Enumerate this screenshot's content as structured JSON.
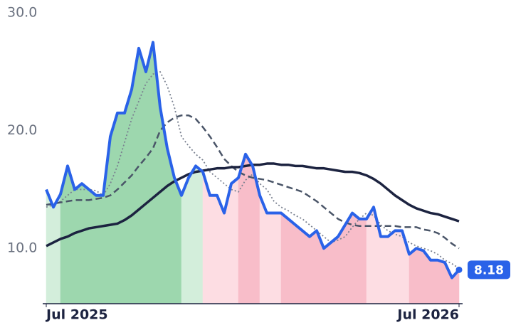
{
  "chart_data": {
    "type": "line",
    "categories": [
      "Jul 2025",
      null,
      null,
      null,
      null,
      null,
      null,
      null,
      null,
      null,
      null,
      null,
      null,
      null,
      null,
      null,
      null,
      null,
      null,
      null,
      null,
      null,
      null,
      null,
      null,
      null,
      null,
      null,
      null,
      null,
      null,
      null,
      null,
      null,
      null,
      null,
      null,
      null,
      null,
      null,
      null,
      null,
      null,
      null,
      null,
      null,
      null,
      null,
      null,
      null,
      null,
      null,
      null,
      null,
      null,
      null,
      null,
      null,
      "Jul 2026"
    ],
    "series": [
      {
        "color": "#2a62e8",
        "style": "solid",
        "width": 4,
        "end_label": true,
        "values": [
          15.0,
          13.5,
          14.6,
          17.0,
          15.0,
          15.5,
          15.0,
          14.5,
          14.5,
          19.5,
          21.5,
          21.5,
          23.5,
          27.0,
          25.0,
          27.5,
          22.0,
          18.5,
          16.0,
          14.5,
          16.0,
          17.0,
          16.5,
          14.5,
          14.5,
          13.0,
          15.5,
          16.0,
          18.0,
          17.0,
          14.5,
          13.0,
          13.0,
          13.0,
          12.5,
          12.0,
          11.5,
          11.0,
          11.5,
          10.0,
          10.5,
          11.0,
          12.0,
          13.0,
          12.5,
          12.5,
          13.5,
          11.0,
          11.0,
          11.5,
          11.5,
          9.5,
          10.0,
          9.8,
          9.0,
          9.0,
          8.8,
          7.5,
          8.18
        ],
        "fill_levels": [
          0,
          0,
          1,
          1,
          1,
          1,
          1,
          1,
          1,
          1,
          1,
          1,
          1,
          1,
          1,
          1,
          1,
          1,
          1,
          0,
          0,
          0,
          2,
          2,
          2,
          2,
          2,
          3,
          3,
          3,
          2,
          2,
          2,
          3,
          3,
          3,
          3,
          3,
          3,
          3,
          3,
          3,
          3,
          3,
          3,
          2,
          2,
          2,
          2,
          2,
          2,
          3,
          3,
          3,
          3,
          3,
          3,
          3,
          3
        ]
      },
      {
        "color": "#1c2340",
        "style": "solid",
        "width": 3.5,
        "values": [
          10.2,
          10.5,
          10.8,
          11.0,
          11.3,
          11.5,
          11.7,
          11.8,
          11.9,
          12.0,
          12.1,
          12.4,
          12.8,
          13.3,
          13.8,
          14.3,
          14.8,
          15.3,
          15.7,
          16.0,
          16.3,
          16.5,
          16.6,
          16.7,
          16.8,
          16.8,
          16.9,
          16.9,
          17.0,
          17.1,
          17.1,
          17.2,
          17.2,
          17.1,
          17.1,
          17.0,
          17.0,
          16.9,
          16.8,
          16.8,
          16.7,
          16.6,
          16.5,
          16.5,
          16.4,
          16.2,
          15.9,
          15.5,
          15.0,
          14.5,
          14.1,
          13.7,
          13.4,
          13.2,
          13.0,
          12.9,
          12.7,
          12.5,
          12.3
        ]
      },
      {
        "color": "#4a5568",
        "style": "dashed",
        "width": 2.5,
        "values": [
          13.7,
          13.8,
          13.9,
          14.0,
          14.1,
          14.1,
          14.1,
          14.2,
          14.3,
          14.5,
          15.0,
          15.6,
          16.2,
          17.0,
          17.7,
          18.5,
          20.0,
          20.7,
          21.1,
          21.3,
          21.3,
          21.0,
          20.3,
          19.5,
          18.6,
          17.6,
          17.0,
          16.5,
          16.2,
          16.0,
          15.9,
          15.8,
          15.6,
          15.4,
          15.2,
          15.0,
          14.8,
          14.4,
          14.0,
          13.5,
          13.0,
          12.5,
          12.2,
          12.0,
          11.9,
          11.9,
          11.9,
          11.9,
          11.9,
          11.9,
          11.8,
          11.8,
          11.8,
          11.6,
          11.5,
          11.3,
          10.9,
          10.4,
          10.0
        ]
      },
      {
        "color": "#7a8190",
        "style": "dotted",
        "width": 1.8,
        "values": [
          13.5,
          13.7,
          14.0,
          14.5,
          15.0,
          15.0,
          15.0,
          14.9,
          14.5,
          15.5,
          17.0,
          19.0,
          21.0,
          22.5,
          24.0,
          24.8,
          25.0,
          23.8,
          22.0,
          19.5,
          18.7,
          18.0,
          17.5,
          16.5,
          16.0,
          15.5,
          15.0,
          14.8,
          15.8,
          16.3,
          15.5,
          15.0,
          14.0,
          13.5,
          13.2,
          12.8,
          12.5,
          12.0,
          11.5,
          11.0,
          10.5,
          10.7,
          11.0,
          11.8,
          12.5,
          13.0,
          12.8,
          12.0,
          11.5,
          11.2,
          11.0,
          10.5,
          10.2,
          10.0,
          9.8,
          9.5,
          9.0,
          8.7,
          8.3
        ]
      }
    ],
    "fill_palette": [
      "#d3eedb",
      "#9dd7ae",
      "#fddde3",
      "#f8bdc9"
    ],
    "ylim": [
      5.3,
      31.1
    ],
    "yticks": [
      {
        "value": 10,
        "label": "10.0"
      },
      {
        "value": 20,
        "label": "20.0"
      },
      {
        "value": 30,
        "label": "30.0"
      }
    ]
  }
}
